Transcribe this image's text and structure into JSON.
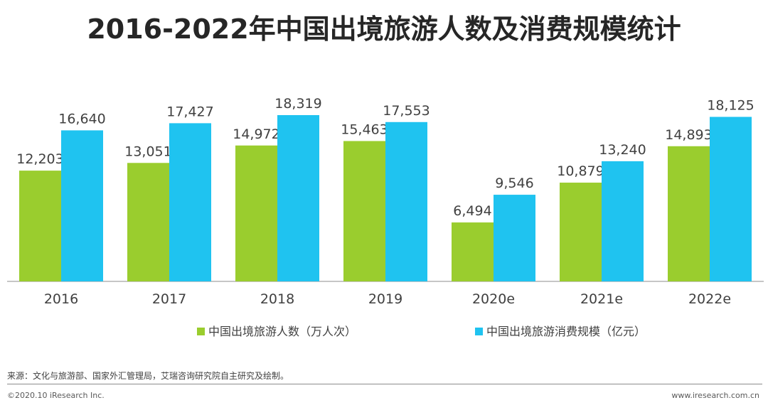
{
  "title": "2016-2022年中国出境旅游人数及消费规模统计",
  "chart_data": {
    "type": "bar",
    "title": "2016-2022年中国出境旅游人数及消费规模统计",
    "categories": [
      "2016",
      "2017",
      "2018",
      "2019",
      "2020e",
      "2021e",
      "2022e"
    ],
    "series": [
      {
        "name": "中国出境旅游人数（万人次）",
        "color": "#9ACD2E",
        "values": [
          12203,
          13051,
          14972,
          15463,
          6494,
          10879,
          14893
        ],
        "labels": [
          "12,203",
          "13,051",
          "14,972",
          "15,463",
          "6,494",
          "10,879",
          "14,893"
        ]
      },
      {
        "name": "中国出境旅游消费规模（亿元）",
        "color": "#1FC3F0",
        "values": [
          16640,
          17427,
          18319,
          17553,
          9546,
          13240,
          18125
        ],
        "labels": [
          "16,640",
          "17,427",
          "18,319",
          "17,553",
          "9,546",
          "13,240",
          "18,125"
        ]
      }
    ],
    "ylim": [
      0,
      18319
    ],
    "grid": false,
    "legend": "bottom-center"
  },
  "footer": {
    "source": "来源：文化与旅游部、国家外汇管理局，艾瑞咨询研究院自主研究及绘制。",
    "copyright": "©2020.10 iResearch Inc.",
    "website": "www.iresearch.com.cn"
  }
}
